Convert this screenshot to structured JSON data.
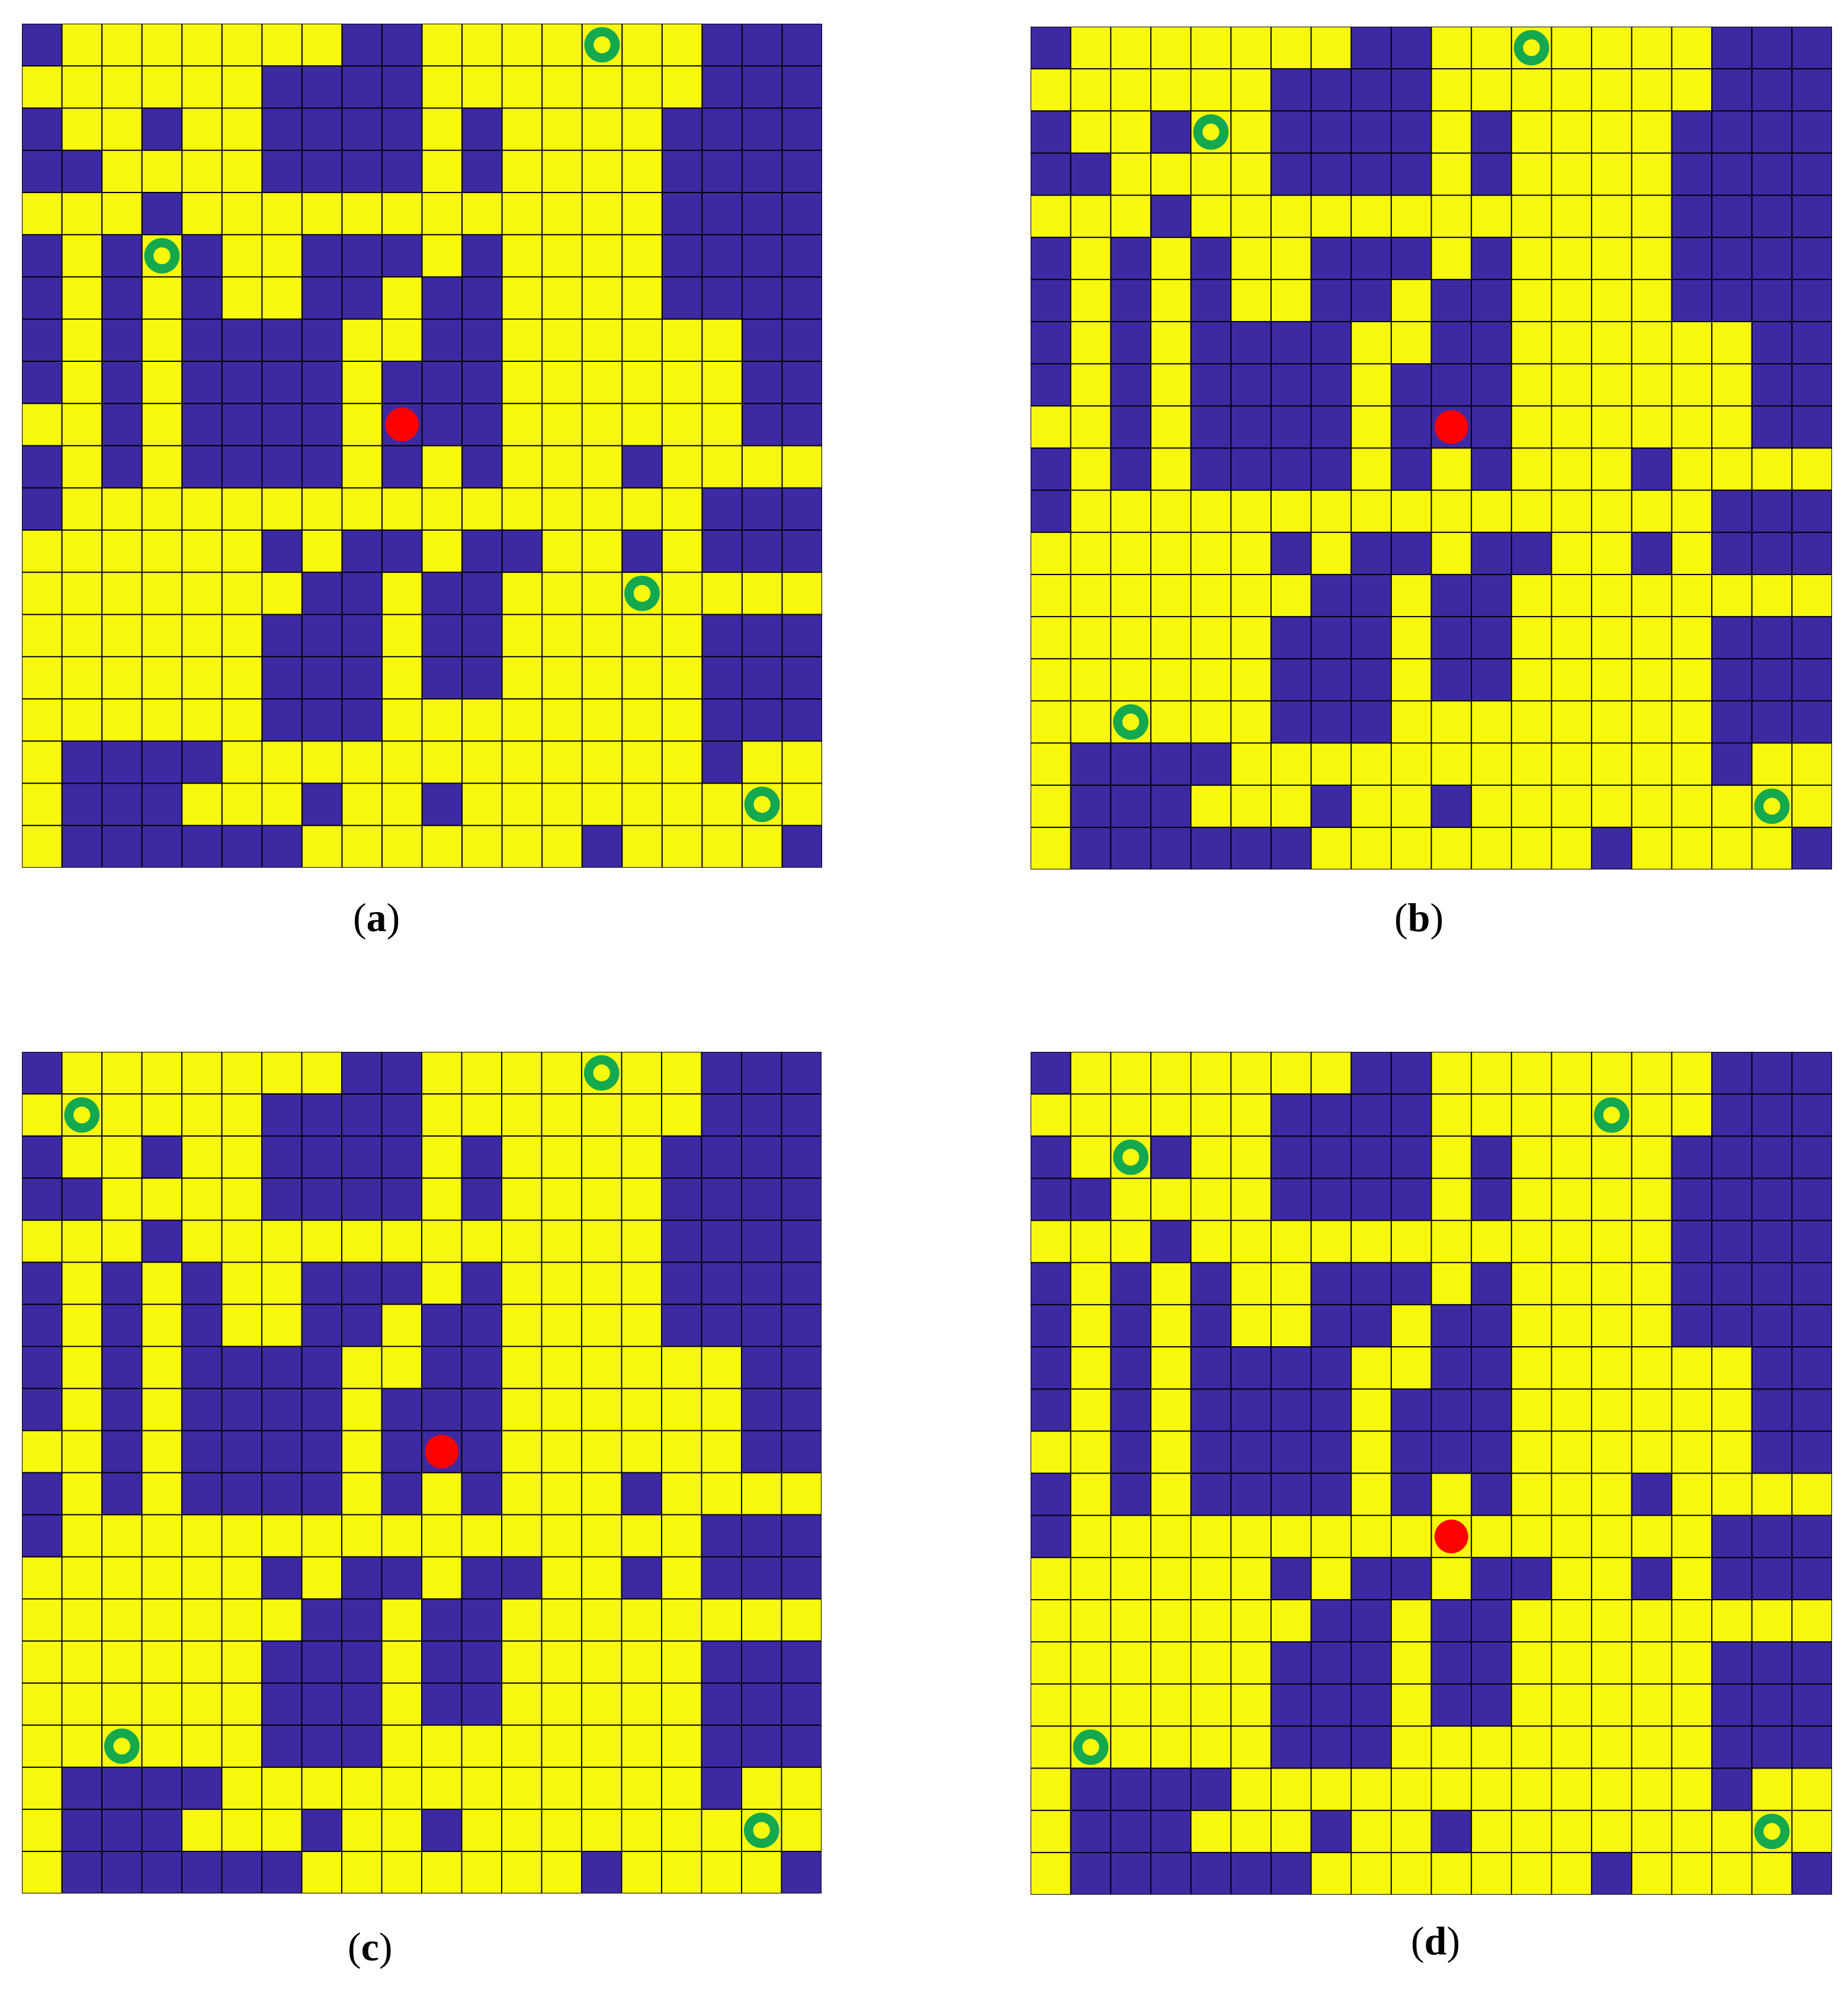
{
  "colors": {
    "obstacle": "#3d2aa2",
    "free": "#f8f80f",
    "gridline": "#000000",
    "start": "#ff0000",
    "goal_ring": "#14a84f",
    "goal_center": "#f8f80f"
  },
  "grid_size": {
    "cols": 20,
    "rows": 20
  },
  "icons": {
    "start": "red-dot",
    "goal": "green-ring"
  },
  "legend_note": "",
  "panels": [
    {
      "id": "a",
      "label": "a",
      "rows": [
        "10000000110000000111",
        "00000011110000000111",
        "10010011110100001111",
        "11000011110100001111",
        "00010000000000001111",
        "10101001110100001111",
        "10101001101100001111",
        "10101111001100000011",
        "10101111011100000011",
        "00101111011100000011",
        "10101111010100010000",
        "10000000000000000111",
        "00000010110110010111",
        "00000001101100000000",
        "00000011101100000111",
        "00000011101100000111",
        "00000011100000000111",
        "01111000000000000100",
        "01110001001000000000",
        "01111110000000100001"
      ],
      "start": [
        9,
        9
      ],
      "goals": [
        [
          0,
          14
        ],
        [
          5,
          3
        ],
        [
          13,
          15
        ],
        [
          18,
          18
        ]
      ]
    },
    {
      "id": "b",
      "label": "b",
      "rows": [
        "10000000110000000111",
        "00000011110000000111",
        "10010011110100001111",
        "11000011110100001111",
        "00010000000000001111",
        "10101001110100001111",
        "10101001101100001111",
        "10101111001100000011",
        "10101111011100000011",
        "00101111011100000011",
        "10101111010100010000",
        "10000000000000000111",
        "00000010110110010111",
        "00000001101100000000",
        "00000011101100000111",
        "00000011101100000111",
        "00000011100000000111",
        "01111000000000000100",
        "01110001001000000000",
        "01111110000000100001"
      ],
      "start": [
        9,
        10
      ],
      "goals": [
        [
          0,
          12
        ],
        [
          2,
          4
        ],
        [
          16,
          2
        ],
        [
          18,
          18
        ]
      ]
    },
    {
      "id": "c",
      "label": "c",
      "rows": [
        "10000000110000000111",
        "00000011110000000111",
        "10010011110100001111",
        "11000011110100001111",
        "00010000000000001111",
        "10101001110100001111",
        "10101001101100001111",
        "10101111001100000011",
        "10101111011100000011",
        "00101111011100000011",
        "10101111010100010000",
        "10000000000000000111",
        "00000010110110010111",
        "00000001101100000000",
        "00000011101100000111",
        "00000011101100000111",
        "00000011100000000111",
        "01111000000000000100",
        "01110001001000000000",
        "01111110000000100001"
      ],
      "start": [
        9,
        10
      ],
      "goals": [
        [
          0,
          14
        ],
        [
          1,
          1
        ],
        [
          16,
          2
        ],
        [
          18,
          18
        ]
      ]
    },
    {
      "id": "d",
      "label": "d",
      "rows": [
        "10000000110000000111",
        "00000011110000000111",
        "10010011110100001111",
        "11000011110100001111",
        "00010000000000001111",
        "10101001110100001111",
        "10101001101100001111",
        "10101111001100000011",
        "10101111011100000011",
        "00101111011100000011",
        "10101111010100010000",
        "10000000000000000111",
        "00000010110110010111",
        "00000001101100000000",
        "00000011101100000111",
        "00000011101100000111",
        "00000011100000000111",
        "01111000000000000100",
        "01110001001000000000",
        "01111110000000100001"
      ],
      "start": [
        11,
        10
      ],
      "goals": [
        [
          1,
          14
        ],
        [
          2,
          2
        ],
        [
          16,
          1
        ],
        [
          18,
          18
        ]
      ]
    }
  ]
}
